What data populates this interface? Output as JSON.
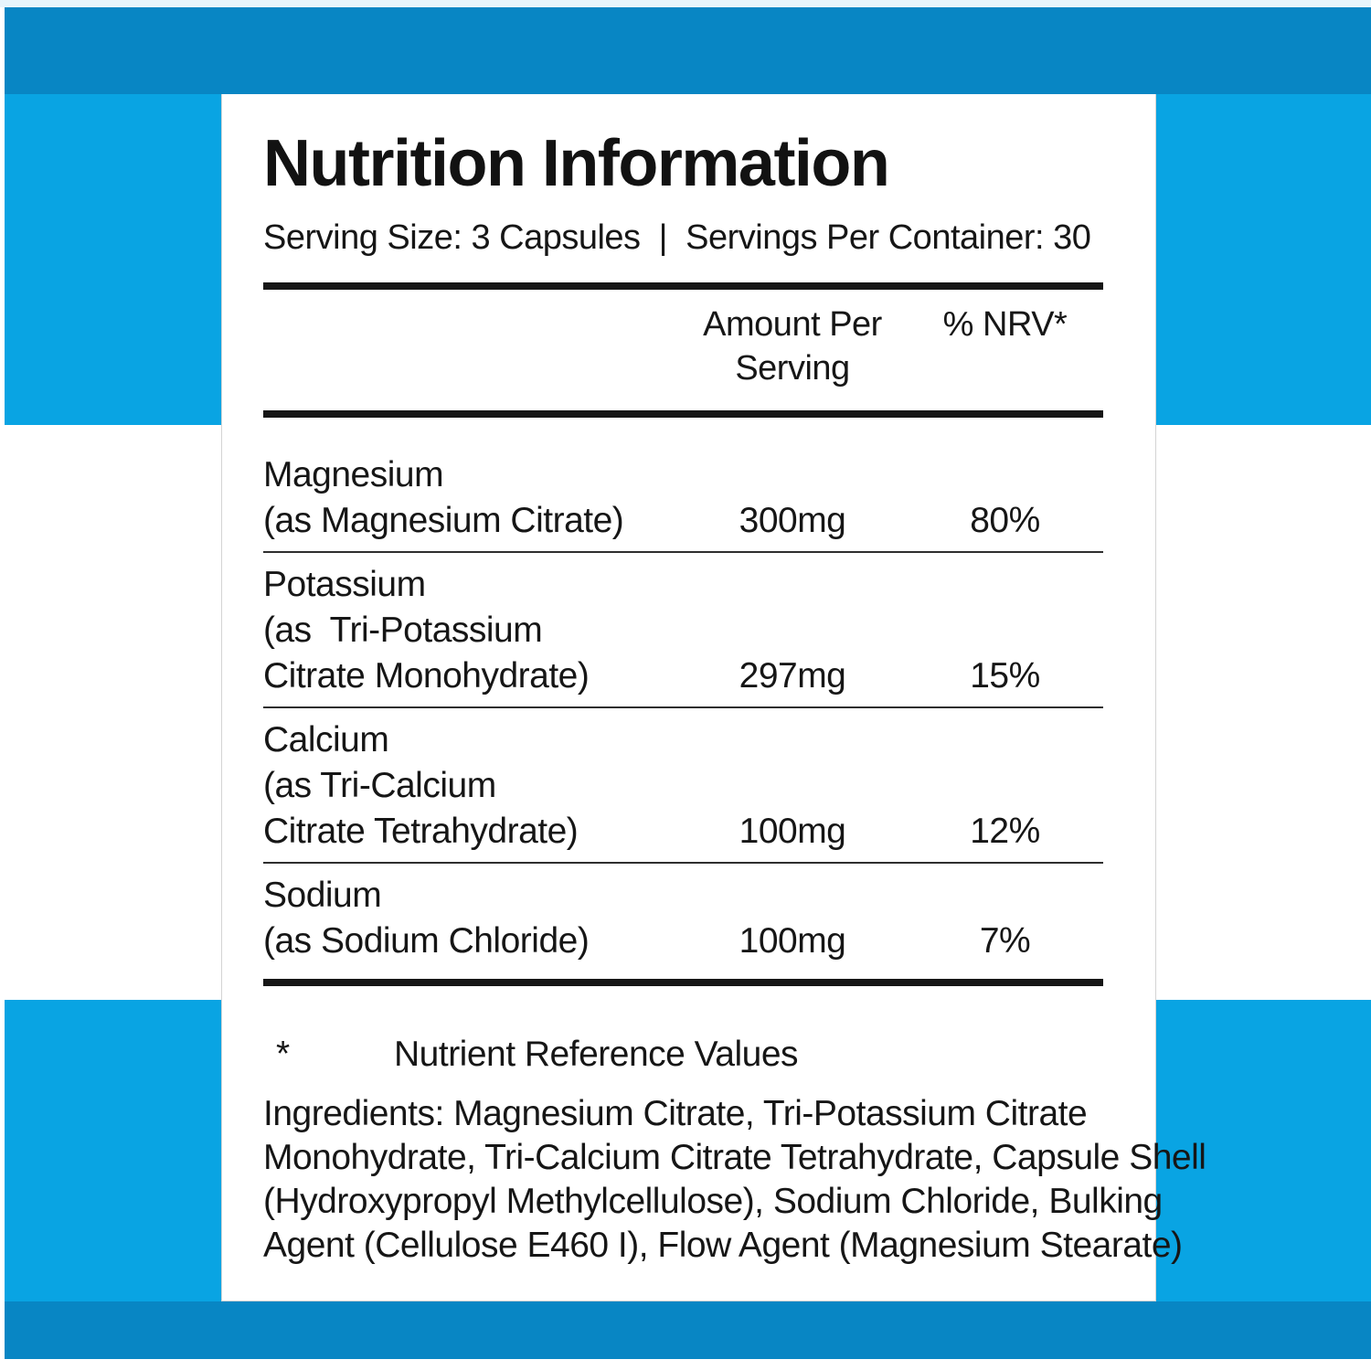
{
  "title": "Nutrition Information",
  "serving_line": "Serving Size: 3 Capsules  |  Servings Per Container: 30",
  "table": {
    "amount_header": "Amount Per\nServing",
    "nrv_header": "% NRV*",
    "rows": [
      {
        "name": "Magnesium\n(as Magnesium Citrate)",
        "amount": "300mg",
        "nrv": "80%"
      },
      {
        "name": "Potassium\n(as  Tri-Potassium\nCitrate Monohydrate)",
        "amount": "297mg",
        "nrv": "15%"
      },
      {
        "name": "Calcium\n(as Tri-Calcium\nCitrate Tetrahydrate)",
        "amount": "100mg",
        "nrv": "12%"
      },
      {
        "name": "Sodium\n(as Sodium Chloride)",
        "amount": "100mg",
        "nrv": "7%"
      }
    ]
  },
  "footnote": {
    "symbol": "*",
    "text": "Nutrient Reference Values"
  },
  "ingredients_text": "Ingredients: Magnesium Citrate, Tri-Potassium Citrate\nMonohydrate, Tri-Calcium Citrate Tetrahydrate, Capsule Shell\n(Hydroxypropyl Methylcellulose), Sodium Chloride, Bulking\nAgent (Cellulose E460 I), Flow Agent (Magnesium Stearate)",
  "colors": {
    "bright_blue": "#09a4e3",
    "dark_blue": "#0886c4"
  }
}
